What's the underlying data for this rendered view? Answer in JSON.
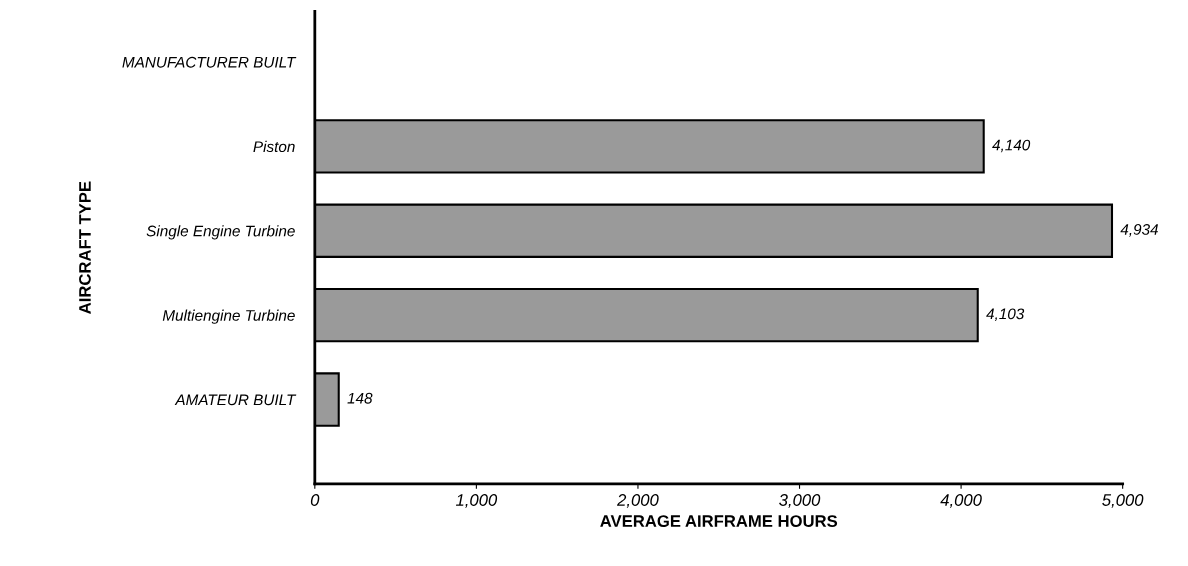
{
  "chart_data": {
    "type": "bar",
    "orientation": "horizontal",
    "xlabel": "AVERAGE AIRFRAME HOURS",
    "ylabel": "AIRCRAFT TYPE",
    "categories": [
      "MANUFACTURER BUILT",
      "Piston",
      "Single Engine Turbine",
      "Multiengine Turbine",
      "AMATEUR BUILT"
    ],
    "values": [
      null,
      4140,
      4934,
      4103,
      148
    ],
    "value_labels": [
      null,
      "4,140",
      "4,934",
      "4,103",
      "148"
    ],
    "color": "#9a9a9a",
    "xlim": [
      0,
      5000
    ],
    "xticks": [
      {
        "value": 0,
        "label": "0"
      },
      {
        "value": 1000,
        "label": "1,000"
      },
      {
        "value": 2000,
        "label": "2,000"
      },
      {
        "value": 3000,
        "label": "3,000"
      },
      {
        "value": 4000,
        "label": "4,000"
      },
      {
        "value": 5000,
        "label": "5,000"
      }
    ],
    "grid": false,
    "legend": false
  }
}
